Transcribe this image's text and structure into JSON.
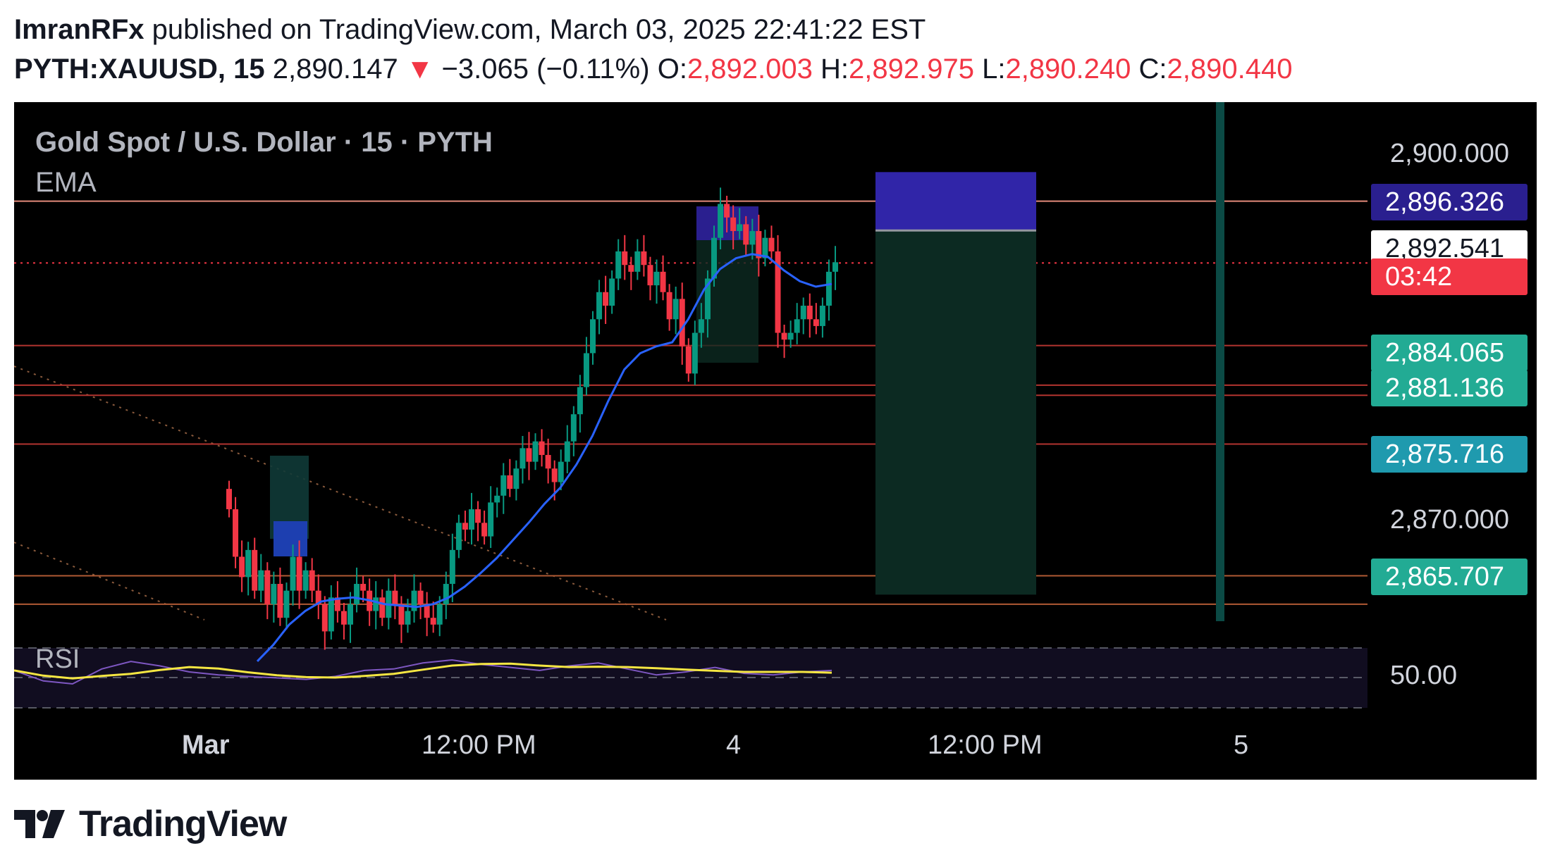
{
  "header": {
    "author": "ImranRFx",
    "published_text": " published on TradingView.com, March 03, 2025 22:41:22 EST",
    "symbol": "PYTH:XAUUSD, 15",
    "last": "2,890.147",
    "arrow": "▼",
    "change": "−3.065 (−0.11%)",
    "o_label": "O:",
    "o_value": "2,892.003",
    "h_label": "H:",
    "h_value": "2,892.975",
    "l_label": "L:",
    "l_value": "2,890.240",
    "c_label": "C:",
    "c_value": "2,890.440"
  },
  "legend": {
    "title": "Gold Spot / U.S. Dollar · 15 · PYTH",
    "ema": "EMA",
    "rsi": "RSI"
  },
  "axis": {
    "price_labels": [
      "2,900.000",
      "2,870.000"
    ],
    "rsi_label": "50.00",
    "time_labels": [
      "Mar",
      "12:00 PM",
      "4",
      "12:00 PM",
      "5"
    ]
  },
  "badges": [
    {
      "text": "2,896.326",
      "bg": "#2a1f8f",
      "color": "#ffffff"
    },
    {
      "text": "2,892.541",
      "bg": "#ffffff",
      "color": "#131722"
    },
    {
      "text": "03:42",
      "bg": "#f23645",
      "color": "#ffffff"
    },
    {
      "text": "2,884.065",
      "bg": "#22ab94",
      "color": "#ffffff"
    },
    {
      "text": "2,881.136",
      "bg": "#22ab94",
      "color": "#ffffff"
    },
    {
      "text": "2,875.716",
      "bg": "#1f9aae",
      "color": "#ffffff"
    },
    {
      "text": "2,865.707",
      "bg": "#22ab94",
      "color": "#ffffff"
    }
  ],
  "footer": {
    "brand": "TradingView"
  },
  "colors": {
    "up": "#089981",
    "down": "#f23645",
    "ema": "#2962ff",
    "rsi": "#7e57c2",
    "rsi_ma": "#f5e642",
    "hline": "#b2342f",
    "short_box": "#3025a8",
    "target_box": "#0c2a22"
  },
  "chart_data": {
    "type": "candlestick",
    "symbol": "PYTH:XAUUSD",
    "interval": "15",
    "price_range": [
      2861,
      2902
    ],
    "horizontal_levels": [
      2894.7,
      2884.06,
      2881.14,
      2880.4,
      2876.8,
      2867.1,
      2865.0
    ],
    "current_price": 2890.147,
    "close_series": [
      2872,
      2868.5,
      2867,
      2869,
      2866,
      2867.5,
      2865,
      2866.5,
      2864,
      2866,
      2868.5,
      2866,
      2867.5,
      2866,
      2865,
      2863,
      2865.5,
      2864.5,
      2863.5,
      2865,
      2866.5,
      2866,
      2864.5,
      2865.5,
      2864,
      2866,
      2865,
      2863.5,
      2864.5,
      2866,
      2865,
      2864,
      2863.5,
      2865,
      2866.5,
      2869,
      2871,
      2870.5,
      2872,
      2871,
      2870,
      2872.5,
      2873,
      2874.5,
      2873.5,
      2875,
      2876.5,
      2875.5,
      2877,
      2876,
      2875,
      2874,
      2875.5,
      2877,
      2879,
      2881,
      2883.5,
      2886,
      2888,
      2887,
      2889,
      2891,
      2890,
      2889.5,
      2891,
      2890,
      2888.5,
      2889.5,
      2888,
      2886,
      2887.5,
      2884,
      2882,
      2885,
      2886,
      2889,
      2892,
      2894.5,
      2893.5,
      2892.5,
      2893,
      2891.5,
      2892.5,
      2890.5,
      2892,
      2891,
      2885,
      2884.5,
      2885,
      2886,
      2887,
      2886,
      2885.5,
      2887,
      2889.5,
      2890.2
    ],
    "ema_series": [
      2860.8,
      2862,
      2863.5,
      2864.5,
      2865.2,
      2865.4,
      2865.5,
      2865.3,
      2865,
      2864.9,
      2864.8,
      2865,
      2865.5,
      2866.3,
      2867.3,
      2868.4,
      2869.7,
      2871,
      2872.4,
      2873.6,
      2875.3,
      2877.4,
      2880,
      2882.3,
      2883.5,
      2884,
      2884.3,
      2886,
      2888.2,
      2889.7,
      2890.5,
      2890.8,
      2890.6,
      2889.6,
      2888.8,
      2888.4,
      2888.6
    ],
    "rsi_series": [
      55,
      48,
      46,
      56,
      61,
      58,
      54,
      52,
      51,
      50,
      49,
      51,
      55,
      56,
      60,
      62,
      59,
      57,
      55,
      58,
      60,
      56,
      52,
      54,
      57,
      53,
      52,
      54,
      55
    ],
    "annotations": [
      {
        "type": "short_position",
        "entry": 2892.541,
        "stop": 2896.326,
        "target": 2865.707
      }
    ]
  }
}
